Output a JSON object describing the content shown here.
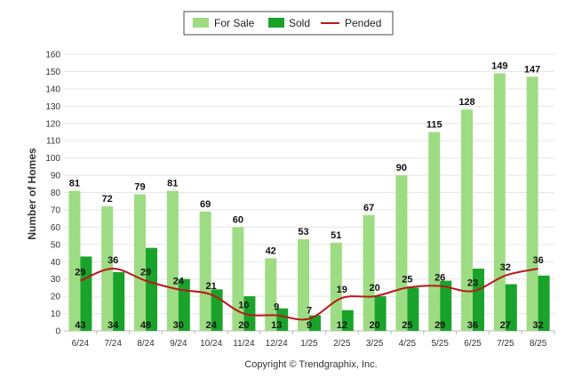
{
  "colors": {
    "for_sale": "#9edc83",
    "sold": "#1aa32a",
    "pended": "#b8191b",
    "grid": "#e6e6e6",
    "axis": "#bbbbbb"
  },
  "footer": "Copyright © Trendgraphix, Inc.",
  "chart_data": {
    "type": "bar",
    "ylabel": "Number of Homes",
    "ylim": [
      0,
      160
    ],
    "yticks": [
      0,
      10,
      20,
      30,
      40,
      50,
      60,
      70,
      80,
      90,
      100,
      110,
      120,
      130,
      140,
      150,
      160
    ],
    "grid": true,
    "legend_position": "top-center",
    "categories": [
      "6/24",
      "7/24",
      "8/24",
      "9/24",
      "10/24",
      "11/24",
      "12/24",
      "1/25",
      "2/25",
      "3/25",
      "4/25",
      "5/25",
      "6/25",
      "7/25",
      "8/25"
    ],
    "series": [
      {
        "name": "For Sale",
        "type": "bar",
        "values": [
          81,
          72,
          79,
          81,
          69,
          60,
          42,
          53,
          51,
          67,
          90,
          115,
          128,
          149,
          147
        ]
      },
      {
        "name": "Sold",
        "type": "bar",
        "values": [
          43,
          34,
          48,
          30,
          24,
          20,
          13,
          9,
          12,
          20,
          25,
          29,
          36,
          27,
          32
        ]
      },
      {
        "name": "Pended",
        "type": "line",
        "values": [
          29,
          36,
          29,
          24,
          21,
          10,
          9,
          7,
          19,
          20,
          25,
          26,
          23,
          32,
          36
        ]
      }
    ]
  }
}
